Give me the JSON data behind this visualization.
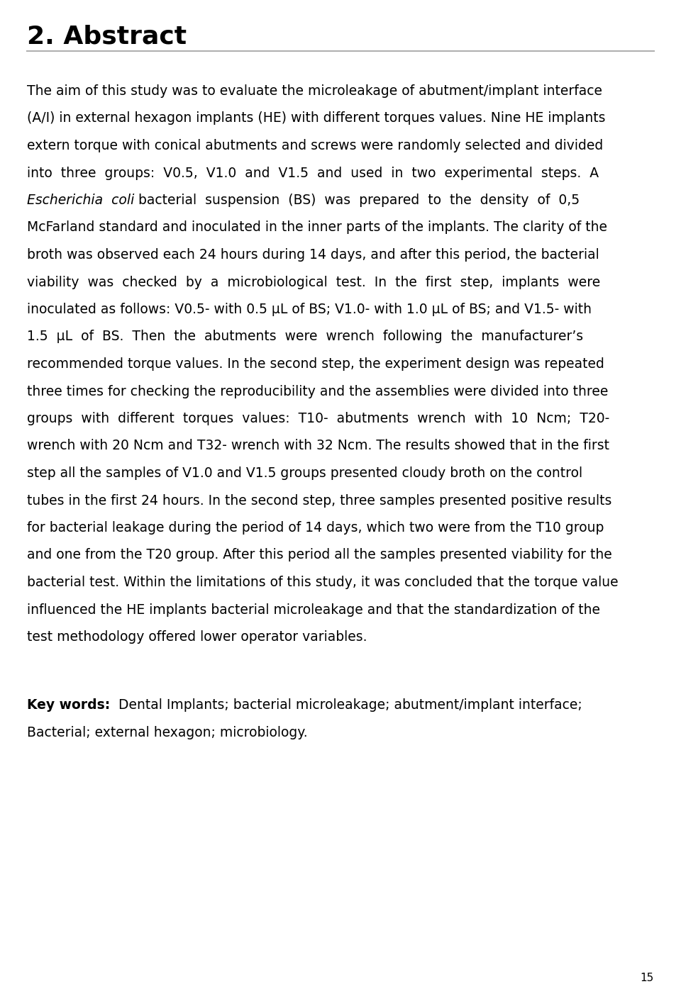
{
  "title": "2. Abstract",
  "title_fontsize": 26,
  "title_fontweight": "bold",
  "page_number": "15",
  "background_color": "#ffffff",
  "text_color": "#000000",
  "line_color": "#b0b0b0",
  "body_fontsize": 13.5,
  "keywords_fontsize": 13.5,
  "lines": [
    [
      "normal",
      "The aim of this study was to evaluate the microleakage of abutment/implant interface"
    ],
    [
      "normal",
      "(A/I) in external hexagon implants (HE) with different torques values. Nine HE implants"
    ],
    [
      "normal",
      "extern torque with conical abutments and screws were randomly selected and divided"
    ],
    [
      "normal",
      "into  three  groups:  V0.5,  V1.0  and  V1.5  and  used  in  two  experimental  steps.  A"
    ],
    [
      "italic_mix",
      "Escherichia  coli",
      " bacterial  suspension  (BS)  was  prepared  to  the  density  of  0,5"
    ],
    [
      "normal",
      "McFarland standard and inoculated in the inner parts of the implants. The clarity of the"
    ],
    [
      "normal",
      "broth was observed each 24 hours during 14 days, and after this period, the bacterial"
    ],
    [
      "normal",
      "viability  was  checked  by  a  microbiological  test.  In  the  first  step,  implants  were"
    ],
    [
      "normal",
      "inoculated as follows: V0.5- with 0.5 μL of BS; V1.0- with 1.0 μL of BS; and V1.5- with"
    ],
    [
      "normal",
      "1.5  μL  of  BS.  Then  the  abutments  were  wrench  following  the  manufacturer’s"
    ],
    [
      "normal",
      "recommended torque values. In the second step, the experiment design was repeated"
    ],
    [
      "normal",
      "three times for checking the reproducibility and the assemblies were divided into three"
    ],
    [
      "normal",
      "groups  with  different  torques  values:  T10-  abutments  wrench  with  10  Ncm;  T20-"
    ],
    [
      "normal",
      "wrench with 20 Ncm and T32- wrench with 32 Ncm. The results showed that in the first"
    ],
    [
      "normal",
      "step all the samples of V1.0 and V1.5 groups presented cloudy broth on the control"
    ],
    [
      "normal",
      "tubes in the first 24 hours. In the second step, three samples presented positive results"
    ],
    [
      "normal",
      "for bacterial leakage during the period of 14 days, which two were from the T10 group"
    ],
    [
      "normal",
      "and one from the T20 group. After this period all the samples presented viability for the"
    ],
    [
      "normal",
      "bacterial test. Within the limitations of this study, it was concluded that the torque value"
    ],
    [
      "normal",
      "influenced the HE implants bacterial microleakage and that the standardization of the"
    ],
    [
      "normal",
      "test methodology offered lower operator variables."
    ]
  ],
  "kw_bold": "Key words:",
  "kw_normal1": "  Dental Implants; bacterial microleakage; abutment/implant interface;",
  "kw_normal2": "Bacterial; external hexagon; microbiology."
}
